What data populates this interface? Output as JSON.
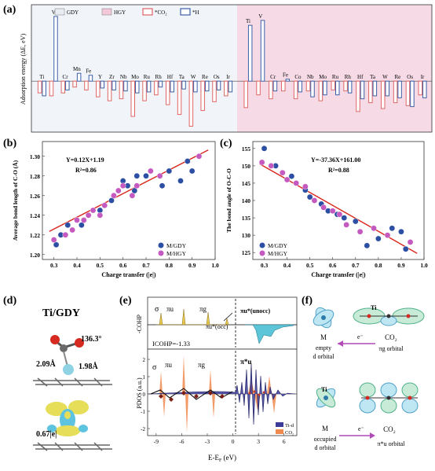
{
  "colors": {
    "gdy_bg": "#f1f4f8",
    "hgy_bg": "#f6dbe6",
    "co2_bar": "#e06666",
    "h_bar": "#3d5fa8",
    "gdy_pt": "#2c4fa3",
    "hgy_pt": "#c459c0",
    "fit": "#d9261c",
    "ti_d": "#3b3b9a",
    "co2_pdos": "#f08a4f",
    "cohp_y": "#e8c84a",
    "cohp_c": "#5cc6d8",
    "orb_g": "#4fb18a",
    "orb_b": "#5aa3d6",
    "arrow": "#b14ab8"
  },
  "panels": {
    "a": "(a)",
    "b": "(b)",
    "c": "(c)",
    "d": "(d)",
    "e": "(e)",
    "f": "(f)"
  },
  "chart_data": [
    {
      "type": "bar",
      "ylabel": "Adsorption energy (ΔE, eV)",
      "legend": [
        "GDY",
        "HGY",
        "*CO2",
        "*H"
      ],
      "legend_labels": {
        "gdy": "GDY",
        "hgy": "HGY",
        "co2": "*CO₂",
        "h": "*H"
      },
      "groups": [
        {
          "name": "GDY",
          "categories": [
            "Ti",
            "V",
            "Cr",
            "Mn",
            "Fe",
            "Y",
            "Zr",
            "Nb",
            "Mo",
            "Ru",
            "Rh",
            "Hf",
            "Ta",
            "W",
            "Re",
            "Os",
            "Ir"
          ],
          "series": [
            {
              "name": "*CO2",
              "values": [
                -0.6,
                -0.75,
                -0.6,
                -0.3,
                -0.45,
                -0.8,
                -1.0,
                -0.9,
                -1.8,
                -1.0,
                -0.7,
                -1.2,
                -1.7,
                -2.3,
                -1.5,
                -1.05,
                -0.75
              ]
            },
            {
              "name": "*H",
              "values": [
                -0.75,
                3.3,
                -0.45,
                0.4,
                0.3,
                -0.35,
                -0.45,
                -0.5,
                -0.6,
                -0.55,
                -0.3,
                -0.55,
                -0.4,
                -0.55,
                -0.5,
                -0.45,
                -0.55
              ]
            }
          ]
        },
        {
          "name": "HGY",
          "categories": [
            "Ti",
            "V",
            "Cr",
            "Fe",
            "Co",
            "Nb",
            "Mo",
            "Ru",
            "Rh",
            "Hf",
            "Ta",
            "W",
            "Re",
            "Os",
            "Ir"
          ],
          "series": [
            {
              "name": "*CO2",
              "values": [
                -1.35,
                -0.7,
                -0.9,
                -0.5,
                -0.9,
                -0.5,
                -1.0,
                -0.45,
                -0.5,
                -1.55,
                -1.1,
                -1.4,
                -1.1,
                -1.25,
                -0.7
              ]
            },
            {
              "name": "*H",
              "values": [
                2.85,
                3.1,
                -0.5,
                0.1,
                -0.55,
                -0.8,
                -0.7,
                -0.7,
                -0.6,
                -0.9,
                -0.75,
                -0.75,
                -0.85,
                -1.3,
                -0.85
              ]
            }
          ]
        }
      ],
      "ylim": [
        -2.6,
        3.9
      ]
    },
    {
      "type": "scatter",
      "xlabel": "Charge transfer (|e|)",
      "ylabel": "Average bond length of C-O (Å)",
      "equation": "Y=0.12X+1.19",
      "r2": "R²=0.86",
      "xlim": [
        0.25,
        1.0
      ],
      "ylim": [
        1.195,
        1.315
      ],
      "xticks": [
        "0.3",
        "0.4",
        "0.5",
        "0.6",
        "0.7",
        "0.8",
        "0.9",
        "1.0"
      ],
      "yticks": [
        "1.20",
        "1.22",
        "1.24",
        "1.26",
        "1.28",
        "1.30"
      ],
      "fit": {
        "slope": 0.12,
        "intercept": 1.19
      },
      "series": [
        {
          "name": "M/GDY",
          "x": [
            0.31,
            0.33,
            0.36,
            0.42,
            0.5,
            0.55,
            0.56,
            0.6,
            0.62,
            0.65,
            0.66,
            0.7,
            0.77,
            0.8,
            0.85,
            0.88,
            0.9
          ],
          "y": [
            1.21,
            1.22,
            1.23,
            1.23,
            1.245,
            1.255,
            1.26,
            1.275,
            1.27,
            1.265,
            1.28,
            1.28,
            1.27,
            1.285,
            1.275,
            1.295,
            1.285
          ]
        },
        {
          "name": "M/HGY",
          "x": [
            0.3,
            0.35,
            0.38,
            0.4,
            0.43,
            0.45,
            0.47,
            0.5,
            0.52,
            0.56,
            0.58,
            0.6,
            0.64,
            0.66,
            0.72,
            0.76,
            0.93
          ],
          "y": [
            1.215,
            1.22,
            1.225,
            1.235,
            1.235,
            1.24,
            1.245,
            1.24,
            1.25,
            1.26,
            1.265,
            1.27,
            1.26,
            1.27,
            1.285,
            1.28,
            1.3
          ]
        }
      ]
    },
    {
      "type": "scatter",
      "xlabel": "Charge transfer (|e|)",
      "ylabel": "The bond angle of O-C-O",
      "equation": "Y=-37.36X+161.00",
      "r2": "R²=0.88",
      "xlim": [
        0.25,
        1.0
      ],
      "ylim": [
        123,
        157
      ],
      "xticks": [
        "0.3",
        "0.4",
        "0.5",
        "0.6",
        "0.7",
        "0.8",
        "0.9",
        "1.0"
      ],
      "yticks": [
        "125",
        "130",
        "135",
        "140",
        "145",
        "150",
        "155"
      ],
      "fit": {
        "slope": -37.36,
        "intercept": 161.0
      },
      "series": [
        {
          "name": "M/GDY",
          "x": [
            0.3,
            0.35,
            0.42,
            0.48,
            0.5,
            0.55,
            0.58,
            0.62,
            0.65,
            0.7,
            0.75,
            0.8,
            0.86,
            0.9,
            0.92
          ],
          "y": [
            155,
            150,
            147,
            143,
            141,
            139,
            137,
            136,
            135,
            134,
            127,
            129,
            132,
            131,
            126
          ]
        },
        {
          "name": "M/HGY",
          "x": [
            0.29,
            0.33,
            0.38,
            0.4,
            0.44,
            0.48,
            0.52,
            0.56,
            0.6,
            0.63,
            0.66,
            0.72,
            0.78,
            0.84,
            0.94
          ],
          "y": [
            151,
            150,
            148,
            146,
            145,
            144,
            140,
            138,
            137,
            136,
            133,
            131,
            132,
            130,
            128
          ]
        }
      ]
    }
  ],
  "panel_d": {
    "title": "Ti/GDY",
    "angle": "136.3°",
    "d1": "2.09Å",
    "d2": "1.98Å",
    "charge": "0.67|e|"
  },
  "panel_e": {
    "cohp_label": "-COHP",
    "pdos_label": "PDOS (a.u.)",
    "icohp": "ICOHP=-1.33",
    "xlabel": "E-E",
    "xsub": "F",
    "xunit": " (eV)",
    "xticks": [
      "-9",
      "-6",
      "-3",
      "0",
      "3",
      "6"
    ],
    "pdos_yticks": [
      "2",
      "1",
      "0",
      "-1",
      "-2"
    ],
    "sigma": "σ",
    "pi_u": "πu",
    "pi_g": "πg",
    "pi_star": "π*u",
    "occ": "πu*(occ)",
    "unocc": "πu*(unocc)",
    "legend": [
      "Ti-d",
      "CO2"
    ],
    "legend_labels": {
      "tid": "Ti-d",
      "co2": "CO₂"
    }
  },
  "panel_f": {
    "M": "M",
    "CO2": "CO₂",
    "Ti": "Ti",
    "e": "e⁻",
    "empty": "empty",
    "empty2": "d orbital",
    "pig": "πg orbital",
    "occupied": "occupied",
    "occupied2": "d orbital",
    "piu": "π*u orbital"
  }
}
